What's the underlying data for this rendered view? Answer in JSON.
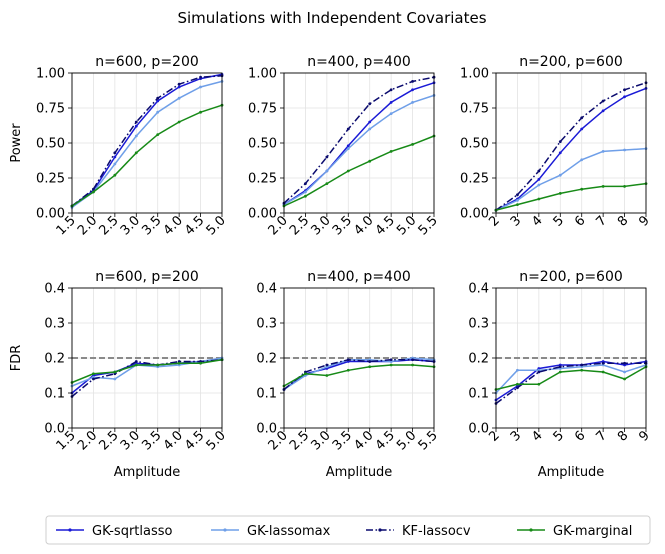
{
  "suptitle": "Simulations with Independent Covariates",
  "legend": {
    "position": "bottom-center",
    "entries": [
      {
        "label": "GK-sqrtlasso",
        "color": "#1a1ad6",
        "dash": "solid"
      },
      {
        "label": "GK-lassomax",
        "color": "#6f9fe8",
        "dash": "solid"
      },
      {
        "label": "KF-lassocv",
        "color": "#0a0a6e",
        "dash": "dashdot"
      },
      {
        "label": "GK-marginal",
        "color": "#178a17",
        "dash": "solid"
      }
    ]
  },
  "chart_data": [
    {
      "type": "line",
      "title": "n=600, p=200",
      "xlabel": "",
      "ylabel": "Power",
      "x": [
        1.5,
        2.0,
        2.5,
        3.0,
        3.5,
        4.0,
        4.5,
        5.0
      ],
      "xticks": [
        "1.5",
        "2.0",
        "2.5",
        "3.0",
        "3.5",
        "4.0",
        "4.5",
        "5.0"
      ],
      "xlim": [
        1.5,
        5.0
      ],
      "ylim": [
        0,
        1
      ],
      "yticks": [
        "0.00",
        "0.25",
        "0.50",
        "0.75",
        "1.00"
      ],
      "grid": true,
      "series": [
        {
          "name": "GK-sqrtlasso",
          "values": [
            0.05,
            0.16,
            0.4,
            0.62,
            0.8,
            0.9,
            0.96,
            0.99
          ]
        },
        {
          "name": "GK-lassomax",
          "values": [
            0.04,
            0.15,
            0.35,
            0.55,
            0.72,
            0.82,
            0.9,
            0.94
          ]
        },
        {
          "name": "KF-lassocv",
          "values": [
            0.05,
            0.17,
            0.43,
            0.65,
            0.82,
            0.92,
            0.97,
            0.98
          ]
        },
        {
          "name": "GK-marginal",
          "values": [
            0.05,
            0.15,
            0.27,
            0.43,
            0.56,
            0.65,
            0.72,
            0.77
          ]
        }
      ]
    },
    {
      "type": "line",
      "title": "n=400, p=400",
      "xlabel": "",
      "ylabel": "",
      "x": [
        2.0,
        2.5,
        3.0,
        3.5,
        4.0,
        4.5,
        5.0,
        5.5
      ],
      "xticks": [
        "2.0",
        "2.5",
        "3.0",
        "3.5",
        "4.0",
        "4.5",
        "5.0",
        "5.5"
      ],
      "xlim": [
        2.0,
        5.5
      ],
      "ylim": [
        0,
        1
      ],
      "yticks": [
        "0.00",
        "0.25",
        "0.50",
        "0.75",
        "1.00"
      ],
      "grid": true,
      "series": [
        {
          "name": "GK-sqrtlasso",
          "values": [
            0.06,
            0.16,
            0.3,
            0.48,
            0.65,
            0.79,
            0.88,
            0.93
          ]
        },
        {
          "name": "GK-lassomax",
          "values": [
            0.06,
            0.15,
            0.3,
            0.46,
            0.6,
            0.71,
            0.79,
            0.84
          ]
        },
        {
          "name": "KF-lassocv",
          "values": [
            0.07,
            0.21,
            0.4,
            0.6,
            0.78,
            0.88,
            0.94,
            0.97
          ]
        },
        {
          "name": "GK-marginal",
          "values": [
            0.05,
            0.12,
            0.21,
            0.3,
            0.37,
            0.44,
            0.49,
            0.55
          ]
        }
      ]
    },
    {
      "type": "line",
      "title": "n=200, p=600",
      "xlabel": "",
      "ylabel": "",
      "x": [
        2,
        3,
        4,
        5,
        6,
        7,
        8,
        9
      ],
      "xticks": [
        "2",
        "3",
        "4",
        "5",
        "6",
        "7",
        "8",
        "9"
      ],
      "xlim": [
        2,
        9
      ],
      "ylim": [
        0,
        1
      ],
      "yticks": [
        "0.00",
        "0.25",
        "0.50",
        "0.75",
        "1.00"
      ],
      "grid": true,
      "series": [
        {
          "name": "GK-sqrtlasso",
          "values": [
            0.02,
            0.1,
            0.24,
            0.43,
            0.6,
            0.73,
            0.83,
            0.89
          ]
        },
        {
          "name": "GK-lassomax",
          "values": [
            0.02,
            0.09,
            0.2,
            0.27,
            0.38,
            0.44,
            0.45,
            0.46
          ]
        },
        {
          "name": "KF-lassocv",
          "values": [
            0.02,
            0.13,
            0.3,
            0.51,
            0.68,
            0.8,
            0.88,
            0.93
          ]
        },
        {
          "name": "GK-marginal",
          "values": [
            0.02,
            0.06,
            0.1,
            0.14,
            0.17,
            0.19,
            0.19,
            0.21
          ]
        }
      ]
    },
    {
      "type": "line",
      "title": "n=600, p=200",
      "xlabel": "Amplitude",
      "ylabel": "FDR",
      "x": [
        1.5,
        2.0,
        2.5,
        3.0,
        3.5,
        4.0,
        4.5,
        5.0
      ],
      "xticks": [
        "1.5",
        "2.0",
        "2.5",
        "3.0",
        "3.5",
        "4.0",
        "4.5",
        "5.0"
      ],
      "xlim": [
        1.5,
        5.0
      ],
      "ylim": [
        0,
        0.4
      ],
      "yticks": [
        "0.0",
        "0.1",
        "0.2",
        "0.3",
        "0.4"
      ],
      "grid": true,
      "reference_line": 0.2,
      "series": [
        {
          "name": "GK-sqrtlasso",
          "values": [
            0.1,
            0.15,
            0.16,
            0.185,
            0.18,
            0.185,
            0.19,
            0.195
          ]
        },
        {
          "name": "GK-lassomax",
          "values": [
            0.12,
            0.145,
            0.14,
            0.18,
            0.175,
            0.18,
            0.19,
            0.2
          ]
        },
        {
          "name": "KF-lassocv",
          "values": [
            0.09,
            0.14,
            0.155,
            0.19,
            0.18,
            0.19,
            0.19,
            0.195
          ]
        },
        {
          "name": "GK-marginal",
          "values": [
            0.13,
            0.155,
            0.16,
            0.18,
            0.18,
            0.185,
            0.185,
            0.195
          ]
        }
      ]
    },
    {
      "type": "line",
      "title": "n=400, p=400",
      "xlabel": "Amplitude",
      "ylabel": "",
      "x": [
        2.0,
        2.5,
        3.0,
        3.5,
        4.0,
        4.5,
        5.0,
        5.5
      ],
      "xticks": [
        "2.0",
        "2.5",
        "3.0",
        "3.5",
        "4.0",
        "4.5",
        "5.0",
        "5.5"
      ],
      "xlim": [
        2.0,
        5.5
      ],
      "ylim": [
        0,
        0.4
      ],
      "yticks": [
        "0.0",
        "0.1",
        "0.2",
        "0.3",
        "0.4"
      ],
      "grid": true,
      "reference_line": 0.2,
      "series": [
        {
          "name": "GK-sqrtlasso",
          "values": [
            0.11,
            0.155,
            0.17,
            0.19,
            0.19,
            0.19,
            0.195,
            0.19
          ]
        },
        {
          "name": "GK-lassomax",
          "values": [
            0.11,
            0.15,
            0.175,
            0.195,
            0.195,
            0.19,
            0.2,
            0.195
          ]
        },
        {
          "name": "KF-lassocv",
          "values": [
            0.11,
            0.16,
            0.18,
            0.195,
            0.19,
            0.195,
            0.195,
            0.19
          ]
        },
        {
          "name": "GK-marginal",
          "values": [
            0.12,
            0.155,
            0.15,
            0.165,
            0.175,
            0.18,
            0.18,
            0.175
          ]
        }
      ]
    },
    {
      "type": "line",
      "title": "n=200, p=600",
      "xlabel": "Amplitude",
      "ylabel": "",
      "x": [
        2,
        3,
        4,
        5,
        6,
        7,
        8,
        9
      ],
      "xticks": [
        "2",
        "3",
        "4",
        "5",
        "6",
        "7",
        "8",
        "9"
      ],
      "xlim": [
        2,
        9
      ],
      "ylim": [
        0,
        0.4
      ],
      "yticks": [
        "0.0",
        "0.1",
        "0.2",
        "0.3",
        "0.4"
      ],
      "grid": true,
      "reference_line": 0.2,
      "series": [
        {
          "name": "GK-sqrtlasso",
          "values": [
            0.08,
            0.12,
            0.17,
            0.18,
            0.18,
            0.19,
            0.18,
            0.19
          ]
        },
        {
          "name": "GK-lassomax",
          "values": [
            0.1,
            0.165,
            0.165,
            0.17,
            0.175,
            0.18,
            0.16,
            0.18
          ]
        },
        {
          "name": "KF-lassocv",
          "values": [
            0.07,
            0.115,
            0.16,
            0.175,
            0.18,
            0.185,
            0.185,
            0.185
          ]
        },
        {
          "name": "GK-marginal",
          "values": [
            0.11,
            0.125,
            0.125,
            0.16,
            0.165,
            0.16,
            0.14,
            0.175
          ]
        }
      ]
    }
  ]
}
